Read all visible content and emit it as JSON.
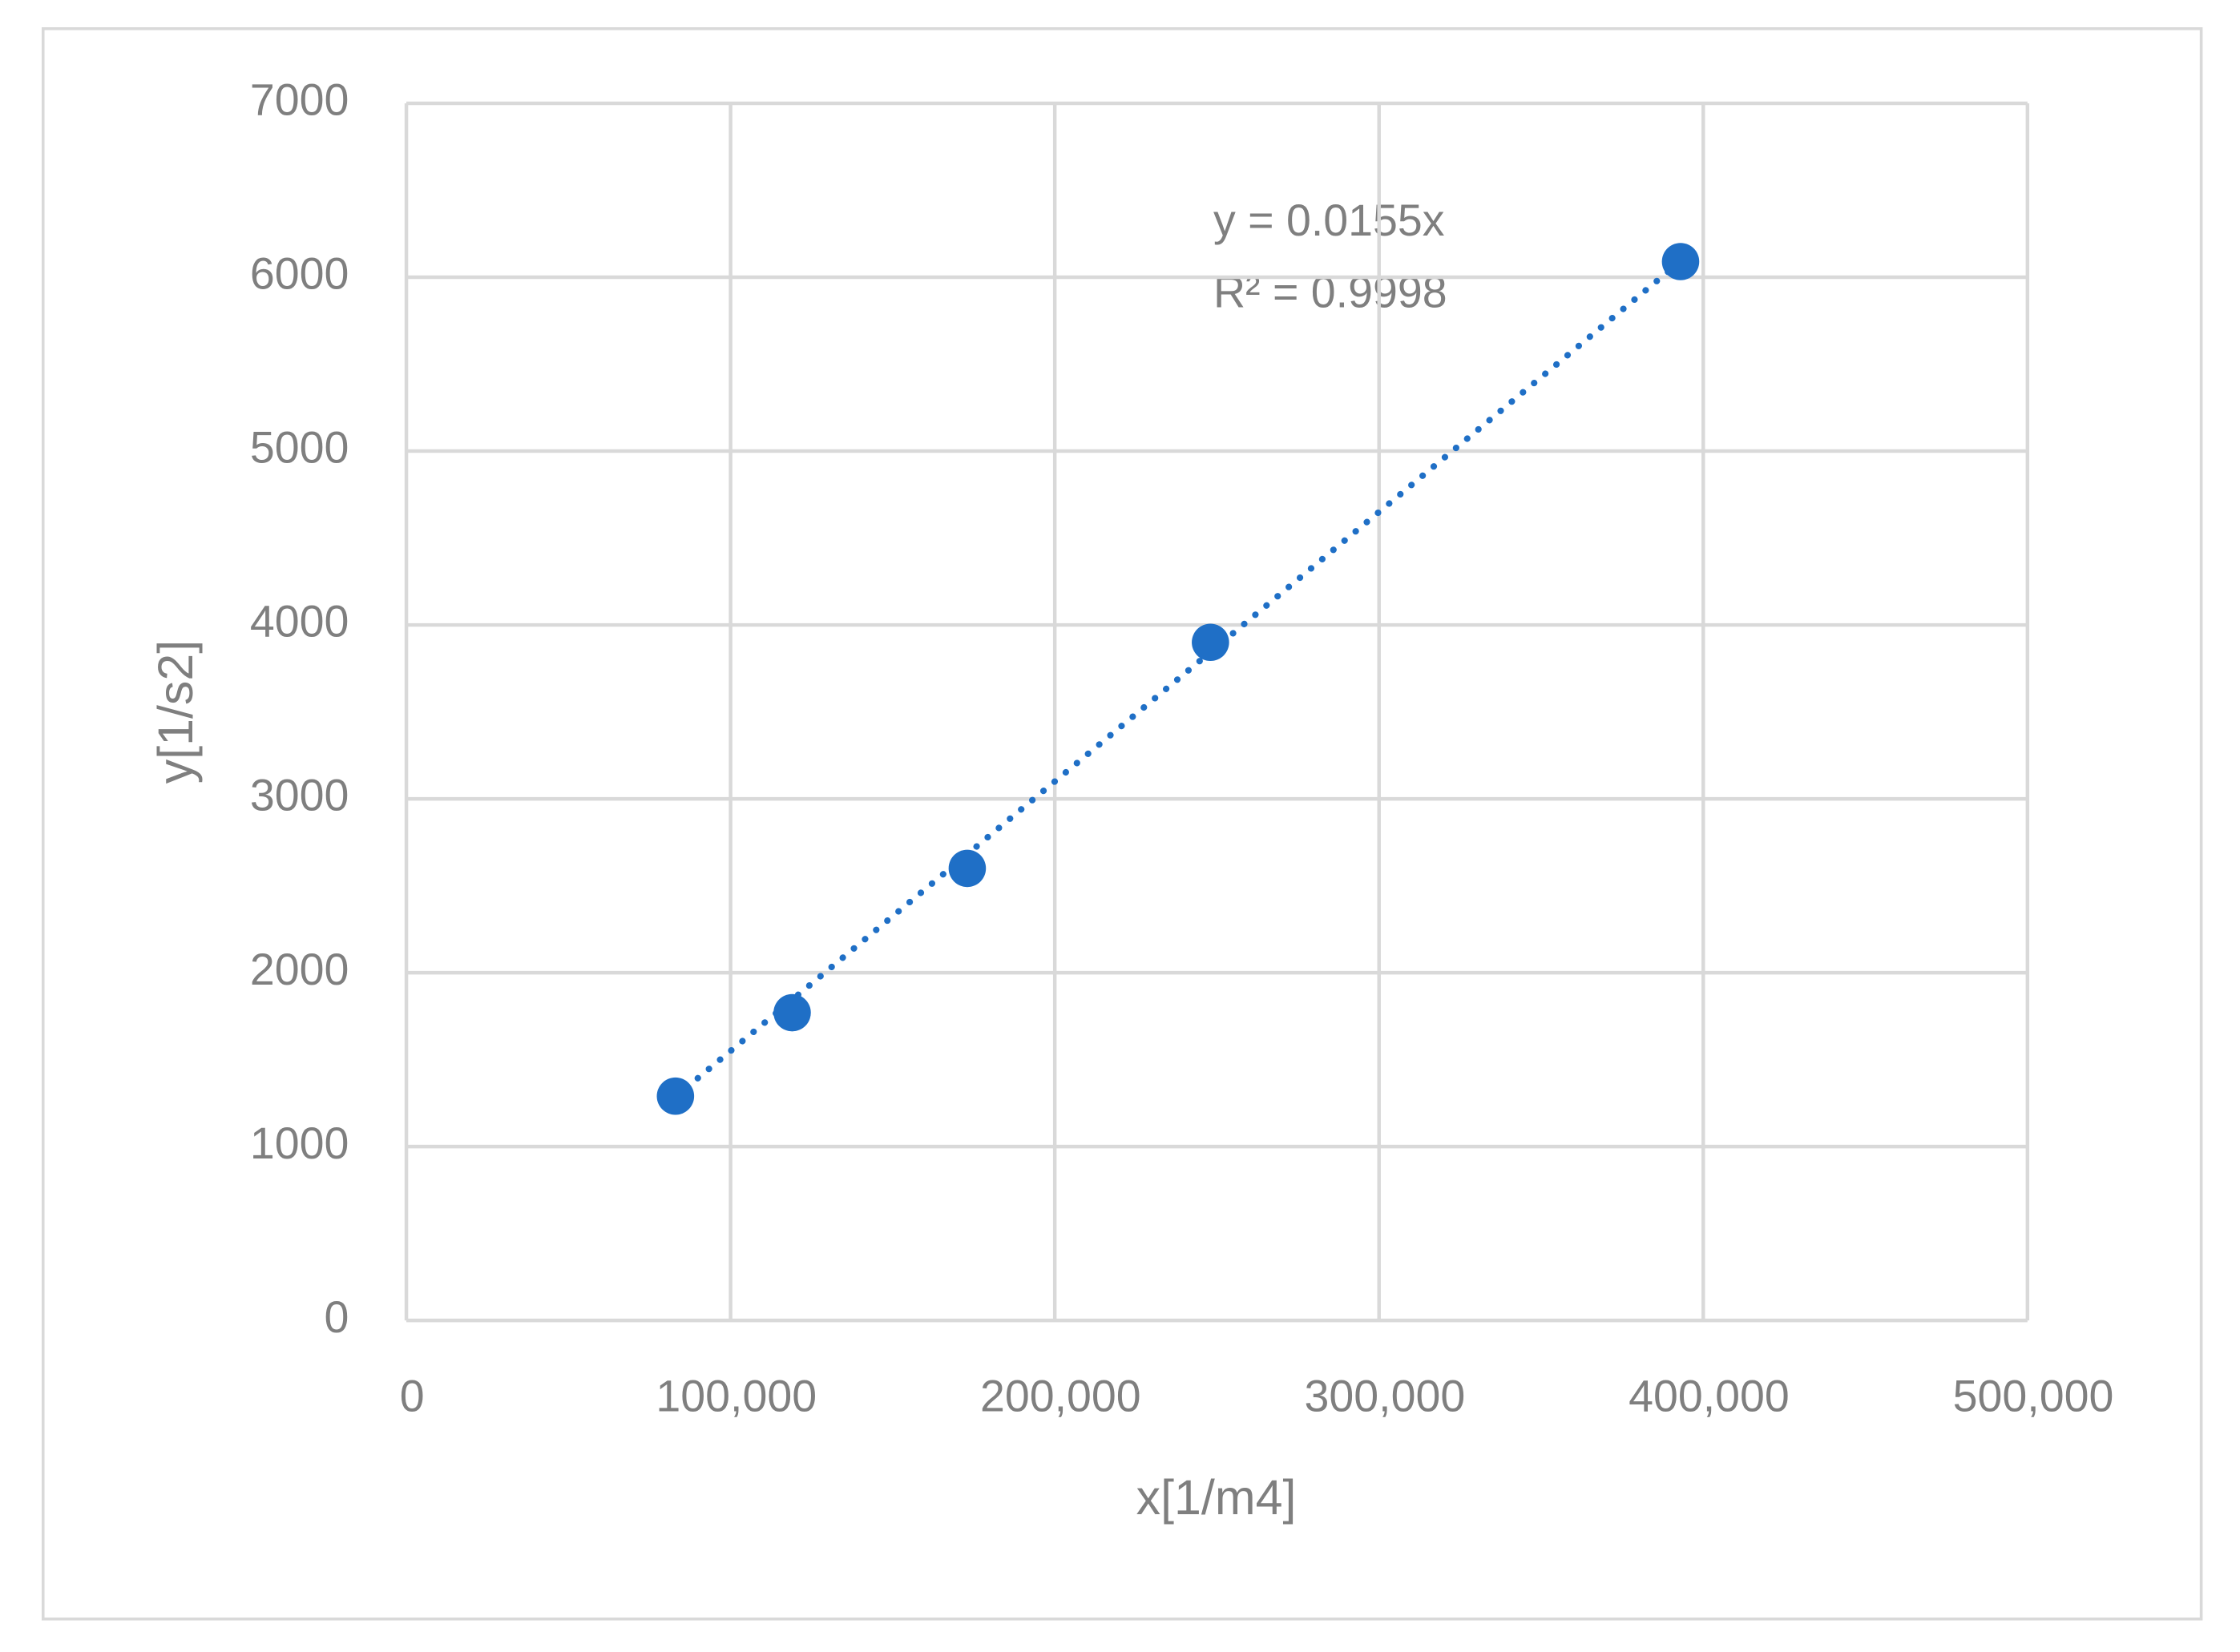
{
  "chart_data": {
    "type": "scatter",
    "x_label": "x[1/m4]",
    "y_label": "y[1/s2]",
    "series": [
      {
        "color": "#1f6fc6",
        "x": [
          83000,
          119000,
          173000,
          248000,
          393000
        ],
        "values": [
          1290,
          1770,
          2600,
          3900,
          6090
        ]
      }
    ],
    "trendline": {
      "slope": 0.0155,
      "equation": "y = 0.0155x",
      "r_squared": "R² = 0.9998",
      "style": "dotted"
    },
    "xlim": [
      0,
      500000
    ],
    "xticks": [
      0,
      {
        "value": 100000,
        "label": "100,000"
      },
      {
        "value": 200000,
        "label": "200,000"
      },
      {
        "value": 300000,
        "label": "300,000"
      },
      {
        "value": 400000,
        "label": "400,000"
      },
      {
        "value": 500000,
        "label": "500,000"
      }
    ],
    "ylim": [
      0,
      7000
    ],
    "yticks": [
      0,
      1000,
      2000,
      3000,
      4000,
      5000,
      6000,
      7000
    ],
    "grid": true
  }
}
